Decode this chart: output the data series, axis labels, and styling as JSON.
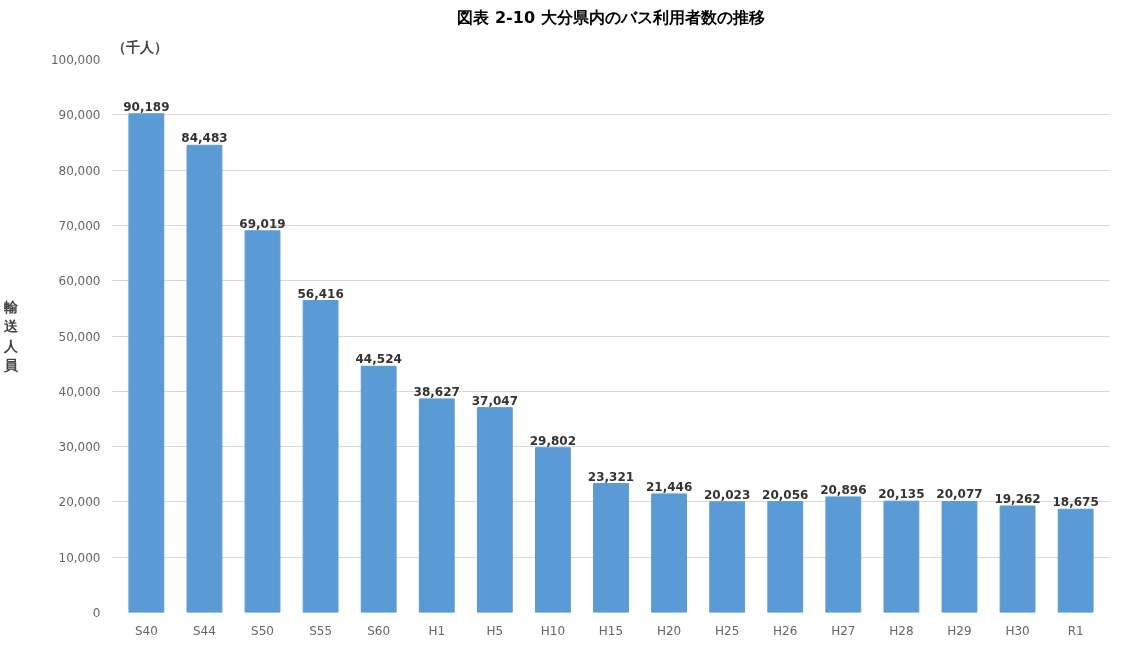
{
  "chart_data": {
    "type": "bar",
    "title": "図表 2-10 大分県内のバス利用者数の推移",
    "ylabel": "輸送人員",
    "annotations": [
      "（千人）"
    ],
    "categories": [
      "S40",
      "S44",
      "S50",
      "S55",
      "S60",
      "H1",
      "H5",
      "H10",
      "H15",
      "H20",
      "H25",
      "H26",
      "H27",
      "H28",
      "H29",
      "H30",
      "R1"
    ],
    "values": [
      90189,
      84483,
      69019,
      56416,
      44524,
      38627,
      37047,
      29802,
      23321,
      21446,
      20023,
      20056,
      20896,
      20135,
      20077,
      19262,
      18675
    ],
    "value_labels": [
      "90,189",
      "84,483",
      "69,019",
      "56,416",
      "44,524",
      "38,627",
      "37,047",
      "29,802",
      "23,321",
      "21,446",
      "20,023",
      "20,056",
      "20,896",
      "20,135",
      "20,077",
      "19,262",
      "18,675"
    ],
    "color": "#5b9bd5",
    "ylim": [
      0,
      100000
    ],
    "yticks": [
      0,
      {
        "value": 10000,
        "label": "10,000"
      },
      {
        "value": 20000,
        "label": "20,000"
      },
      {
        "value": 30000,
        "label": "30,000"
      },
      {
        "value": 40000,
        "label": "40,000"
      },
      {
        "value": 50000,
        "label": "50,000"
      },
      {
        "value": 60000,
        "label": "60,000"
      },
      {
        "value": 70000,
        "label": "70,000"
      },
      {
        "value": 80000,
        "label": "80,000"
      },
      {
        "value": 90000,
        "label": "90,000"
      },
      {
        "value": 100000,
        "label": "100,000"
      }
    ],
    "grid": "y"
  }
}
